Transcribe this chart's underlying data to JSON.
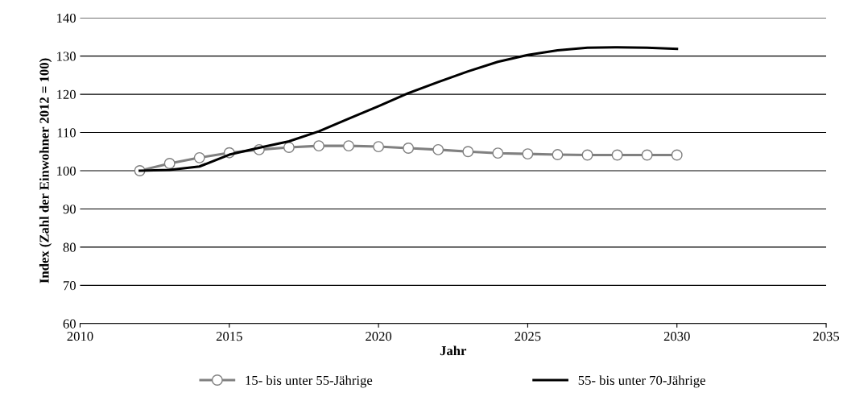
{
  "chart_data": {
    "type": "line",
    "xlabel": "Jahr",
    "ylabel": "Index (Zahl der Einwohner 2012 = 100)",
    "x": [
      2012,
      2013,
      2014,
      2015,
      2016,
      2017,
      2018,
      2019,
      2020,
      2021,
      2022,
      2023,
      2024,
      2025,
      2026,
      2027,
      2028,
      2029,
      2030
    ],
    "series": [
      {
        "name": "15- bis unter 55-Jährige",
        "color": "#808080",
        "marker": "circle",
        "values": [
          100,
          101.9,
          103.4,
          104.7,
          105.5,
          106.1,
          106.5,
          106.5,
          106.3,
          105.9,
          105.5,
          105.0,
          104.6,
          104.4,
          104.2,
          104.1,
          104.1,
          104.1,
          104.1
        ]
      },
      {
        "name": "55- bis unter 70-Jährige",
        "color": "#000000",
        "marker": "none",
        "values": [
          100,
          100.2,
          101.1,
          104.2,
          106.0,
          107.7,
          110.3,
          113.6,
          116.9,
          120.3,
          123.2,
          126.0,
          128.5,
          130.3,
          131.5,
          132.2,
          132.3,
          132.2,
          131.9
        ]
      }
    ],
    "xlim": [
      2010,
      2035
    ],
    "xticks": [
      2010,
      2015,
      2020,
      2025,
      2030,
      2035
    ],
    "ylim": [
      60,
      140
    ],
    "yticks": [
      60,
      70,
      80,
      90,
      100,
      110,
      120,
      130,
      140
    ],
    "grid": "y",
    "legend": "bottom",
    "line_style": "solid"
  }
}
